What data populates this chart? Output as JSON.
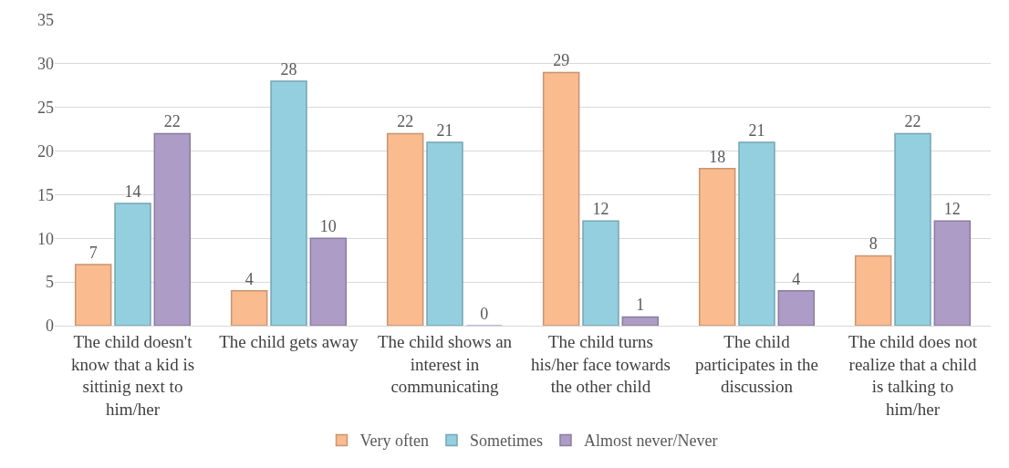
{
  "chart_data": {
    "type": "bar",
    "categories": [
      "The child doesn't know that a kid is sittinig next to him/her",
      "The child gets away",
      "The child shows an interest in communicating",
      "The child turns his/her face towards the other child",
      "The child participates in the discussion",
      "The child does not realize that a child is talking to him/her"
    ],
    "series": [
      {
        "name": "Very often",
        "color": "#fabb8f",
        "values": [
          7,
          4,
          22,
          29,
          18,
          8
        ]
      },
      {
        "name": "Sometimes",
        "color": "#93cfdf",
        "values": [
          14,
          28,
          21,
          12,
          21,
          22
        ]
      },
      {
        "name": "Almost never/Never",
        "color": "#ad9cc6",
        "values": [
          22,
          10,
          0,
          1,
          4,
          12
        ]
      }
    ],
    "ylim": [
      0,
      35
    ],
    "yticks": [
      0,
      5,
      10,
      15,
      20,
      25,
      30,
      35
    ],
    "grid": "y",
    "legend": "bottom",
    "data_labels": true
  }
}
